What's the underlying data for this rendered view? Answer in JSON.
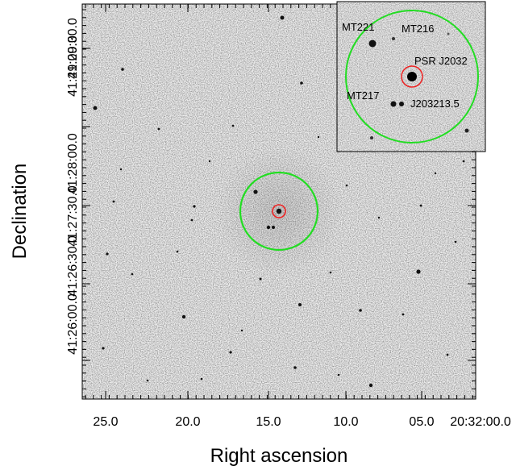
{
  "figure": {
    "xlabel": "Right ascension",
    "ylabel": "Declination",
    "ra_ticks": [
      "25.0",
      "20.0",
      "15.0",
      "10.0",
      "05.0",
      "20:32:00.0"
    ],
    "dec_ticks": [
      "41:29:30.0",
      "41:29:00.0",
      "41:28:00.0",
      "41:27:30.0",
      "41:26:30.0",
      "41:26:00.0"
    ]
  },
  "inset": {
    "labels": [
      "MT221",
      "MT216",
      "PSR J2032",
      "MT217",
      "J203213.5"
    ]
  },
  "colors": {
    "circle_large": "#22dd22",
    "circle_small": "#ee2222",
    "background": "#ffffff"
  }
}
